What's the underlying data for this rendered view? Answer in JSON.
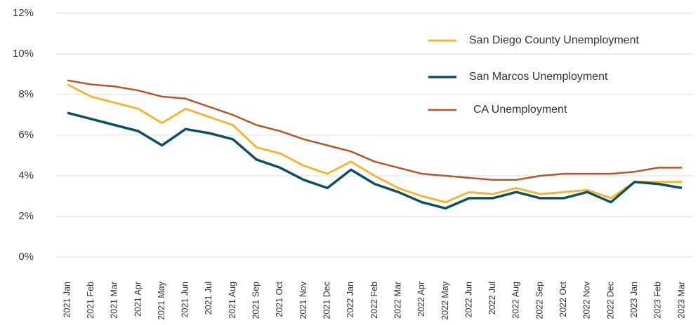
{
  "chart_data": {
    "type": "line",
    "categories": [
      "2021 Jan",
      "2021 Feb",
      "2021 Mar",
      "2021 Apr",
      "2021 May",
      "2021 Jun",
      "2021 Jul",
      "2021 Aug",
      "2021 Sep",
      "2021 Oct",
      "2021 Nov",
      "2021 Dec",
      "2022 Jan",
      "2022 Feb",
      "2022 Mar",
      "2022 Apr",
      "2022 May",
      "2022 Jun",
      "2022 Jul",
      "2022 Aug",
      "2022 Sep",
      "2022 Oct",
      "2022 Nov",
      "2022 Dec",
      "2023 Jan",
      "2023 Feb",
      "2023 Mar"
    ],
    "series": [
      {
        "name": "San Diego County Unemployment",
        "color": "#f0b83a",
        "values": [
          8.5,
          7.9,
          7.6,
          7.3,
          6.6,
          7.3,
          6.9,
          6.5,
          5.4,
          5.1,
          4.5,
          4.1,
          4.7,
          4.0,
          3.4,
          3.0,
          2.7,
          3.2,
          3.1,
          3.4,
          3.1,
          3.2,
          3.3,
          2.9,
          3.7,
          3.7,
          3.7
        ]
      },
      {
        "name": "San Marcos Unemployment",
        "color": "#0e4f63",
        "values": [
          7.1,
          6.8,
          6.5,
          6.2,
          5.5,
          6.3,
          6.1,
          5.8,
          4.8,
          4.4,
          3.8,
          3.4,
          4.3,
          3.6,
          3.2,
          2.7,
          2.4,
          2.9,
          2.9,
          3.2,
          2.9,
          2.9,
          3.2,
          2.7,
          3.7,
          3.6,
          3.4
        ]
      },
      {
        "name": "CA Unemployment",
        "color": "#b5552d",
        "values": [
          8.7,
          8.5,
          8.4,
          8.2,
          7.9,
          7.8,
          7.4,
          7.0,
          6.5,
          6.2,
          5.8,
          5.5,
          5.2,
          4.7,
          4.4,
          4.1,
          4.0,
          3.9,
          3.8,
          3.8,
          4.0,
          4.1,
          4.1,
          4.1,
          4.2,
          4.4,
          4.4
        ]
      }
    ],
    "ylim": [
      0,
      12
    ],
    "yticks": [
      {
        "value": 0,
        "label": "0%"
      },
      {
        "value": 2,
        "label": "2%"
      },
      {
        "value": 4,
        "label": "4%"
      },
      {
        "value": 6,
        "label": "6%"
      },
      {
        "value": 8,
        "label": "8%"
      },
      {
        "value": 10,
        "label": "10%"
      },
      {
        "value": 12,
        "label": "12%"
      }
    ],
    "grid": true,
    "legend": "upper right"
  }
}
